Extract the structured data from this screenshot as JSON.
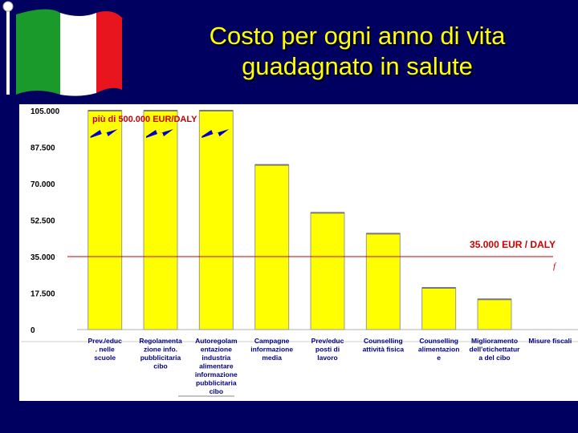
{
  "slide": {
    "title_line1": "Costo per ogni anno di vita",
    "title_line2": "guadagnato in salute"
  },
  "colors": {
    "background": "#000060",
    "title": "#ffff00",
    "bar_fill": "#ffff00",
    "threshold_line": "#cc0000",
    "annotation_red": "#cc0000",
    "bolt": "#0000cc"
  },
  "chart_data": {
    "type": "bar",
    "categories": [
      "Prev./educ. nelle scuole",
      "Regolamentazione info. pubblicitaria cibo",
      "Autoregolamentazione industria alimentare informazione pubblicitaria cibo",
      "Campagne informazione media",
      "Prev/educ posti di lavoro",
      "Counselling attività fisica",
      "Counselling alimentazione",
      "Miglioramento dell'etichettatura del cibo",
      "Misure fiscali"
    ],
    "category_lines": [
      [
        "Prev./educ",
        ". nelle",
        "scuole"
      ],
      [
        "Regolamenta",
        "zione info.",
        "pubblicitaria",
        "cibo"
      ],
      [
        "Autoregolam",
        "entazione",
        "industria",
        "alimentare",
        "informazione",
        "pubblicitaria",
        "cibo"
      ],
      [
        "Campagne",
        "informazione",
        "media"
      ],
      [
        "Prev/educ",
        "posti di",
        "lavoro"
      ],
      [
        "Counselling",
        "attività fisica"
      ],
      [
        "Counselling",
        "alimentazion",
        "e"
      ],
      [
        "Miglioramento",
        "dell'etichettatur",
        "a del cibo"
      ],
      [
        "Misure fiscali"
      ]
    ],
    "values": [
      105000,
      105000,
      105000,
      79000,
      56000,
      46000,
      20000,
      14500,
      0
    ],
    "yticks": [
      "105.000",
      "87.500",
      "70.000",
      "52.500",
      "35.000",
      "17.500",
      "0"
    ],
    "ytick_values": [
      105000,
      87500,
      70000,
      52500,
      35000,
      17500,
      0
    ],
    "ylim": [
      0,
      105000
    ],
    "xlabel": "",
    "ylabel": "",
    "grid": false,
    "legend": "none",
    "threshold": {
      "value": 35000,
      "label": "35.000 EUR / DALY"
    },
    "off_scale_note": "più di 500.000 EUR/DALY",
    "off_scale_bars": [
      0,
      1,
      2
    ],
    "stray_mark": "f"
  }
}
